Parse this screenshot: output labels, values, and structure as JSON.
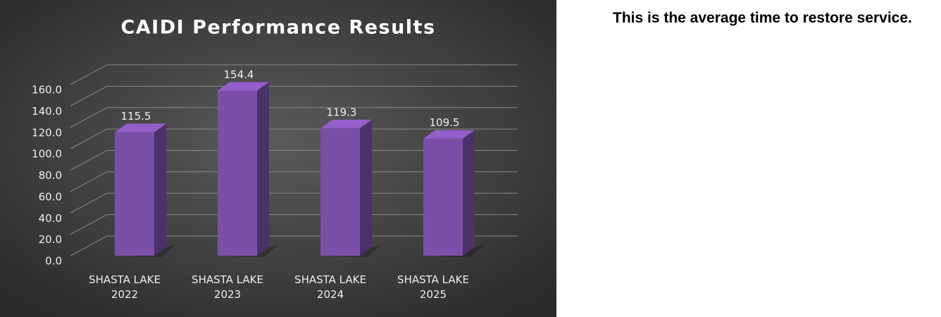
{
  "chart_data": {
    "type": "bar",
    "title": "CAIDI Performance Results",
    "categories": [
      "SHASTA LAKE 2022",
      "SHASTA LAKE 2023",
      "SHASTA LAKE 2024",
      "SHASTA LAKE 2025"
    ],
    "values": [
      115.5,
      154.4,
      119.3,
      109.5
    ],
    "color": "#7b4fa8",
    "ylim": [
      0,
      160
    ],
    "yticks": [
      {
        "value": 0,
        "label": "0.0"
      },
      {
        "value": 20,
        "label": "20.0"
      },
      {
        "value": 40,
        "label": "40.0"
      },
      {
        "value": 60,
        "label": "60.0"
      },
      {
        "value": 80,
        "label": "80.0"
      },
      {
        "value": 100,
        "label": "100.0"
      },
      {
        "value": 120,
        "label": "120.0"
      },
      {
        "value": 140,
        "label": "140.0"
      },
      {
        "value": 160,
        "label": "160.0"
      }
    ],
    "grid": true
  },
  "side_text": "This is the average time to restore service."
}
